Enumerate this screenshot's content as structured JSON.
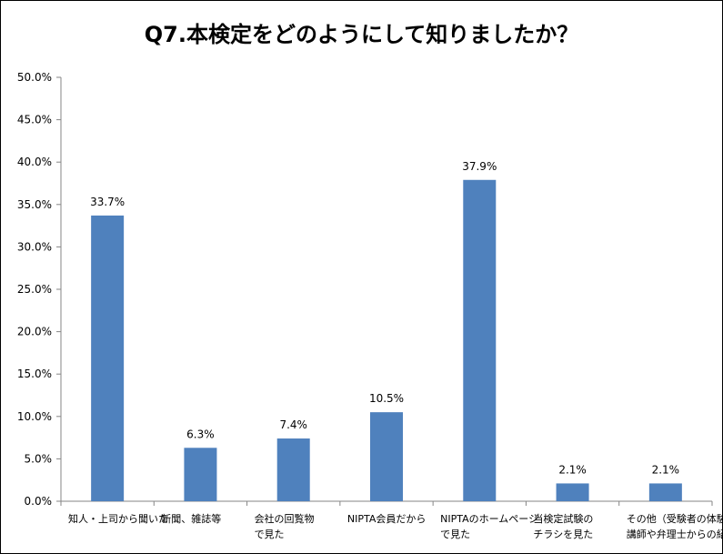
{
  "chart_data": {
    "type": "bar",
    "title": "Q7.本検定をどのようにして知りましたか？",
    "categories": [
      [
        "知人・上司から聞いた"
      ],
      [
        "新聞、雑誌等"
      ],
      [
        "会社の回覧物",
        "で見た"
      ],
      [
        "NIPTA会員だから"
      ],
      [
        "NIPTAのホームページ",
        "で見た"
      ],
      [
        "当検定試験の",
        "チラシを見た"
      ],
      [
        "その他（受験者の体験談を見た、",
        "講師や弁理士からの紹介等）"
      ]
    ],
    "values": [
      33.7,
      6.3,
      7.4,
      10.5,
      37.9,
      2.1,
      2.1
    ],
    "data_labels": [
      "33.7%",
      "6.3%",
      "7.4%",
      "10.5%",
      "37.9%",
      "2.1%",
      "2.1%"
    ],
    "yticks": [
      "0.0%",
      "5.0%",
      "10.0%",
      "15.0%",
      "20.0%",
      "25.0%",
      "30.0%",
      "35.0%",
      "40.0%",
      "45.0%",
      "50.0%"
    ],
    "ylim": [
      0,
      50
    ],
    "bar_color": "#4f81bd",
    "grid": false,
    "legend": "none"
  }
}
